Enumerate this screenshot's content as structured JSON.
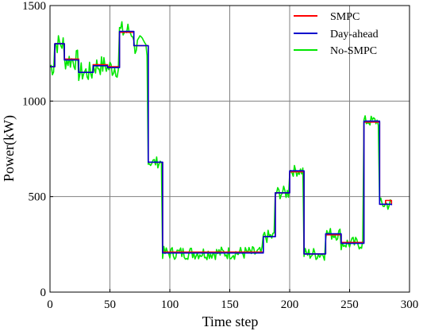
{
  "chart_data": {
    "type": "line",
    "xlabel": "Time step",
    "ylabel": "Power(kW)",
    "xlim": [
      0,
      300
    ],
    "ylim": [
      0,
      1500
    ],
    "xticks": [
      0,
      50,
      100,
      150,
      200,
      250,
      300
    ],
    "yticks": [
      0,
      500,
      1000,
      1500
    ],
    "grid": true,
    "legend_position": "top-right",
    "series": [
      {
        "name": "SMPC",
        "color": "#ff0000",
        "segments": [
          [
            0,
            1180
          ],
          [
            4,
            1300
          ],
          [
            12,
            1220
          ],
          [
            24,
            1150
          ],
          [
            36,
            1190
          ],
          [
            48,
            1180
          ],
          [
            58,
            1360
          ],
          [
            70,
            1290
          ],
          [
            82,
            680
          ],
          [
            94,
            210
          ],
          [
            178,
            290
          ],
          [
            188,
            520
          ],
          [
            200,
            630
          ],
          [
            212,
            200
          ],
          [
            230,
            300
          ],
          [
            243,
            260
          ],
          [
            262,
            890
          ],
          [
            275,
            460
          ],
          [
            280,
            480
          ],
          [
            285,
            460
          ]
        ]
      },
      {
        "name": "Day-ahead",
        "color": "#0000cc",
        "segments": [
          [
            0,
            1180
          ],
          [
            4,
            1300
          ],
          [
            12,
            1215
          ],
          [
            24,
            1150
          ],
          [
            36,
            1185
          ],
          [
            48,
            1175
          ],
          [
            58,
            1365
          ],
          [
            70,
            1290
          ],
          [
            82,
            680
          ],
          [
            94,
            205
          ],
          [
            178,
            290
          ],
          [
            188,
            520
          ],
          [
            200,
            635
          ],
          [
            212,
            200
          ],
          [
            230,
            305
          ],
          [
            243,
            255
          ],
          [
            262,
            895
          ],
          [
            275,
            460
          ],
          [
            285,
            455
          ]
        ]
      },
      {
        "name": "No-SMPC",
        "color": "#00e600",
        "segments": [
          [
            0,
            1180
          ],
          [
            4,
            1300
          ],
          [
            12,
            1215
          ],
          [
            24,
            1150
          ],
          [
            36,
            1185
          ],
          [
            48,
            1175
          ],
          [
            58,
            1365
          ],
          [
            70,
            1290
          ],
          [
            82,
            680
          ],
          [
            94,
            205
          ],
          [
            178,
            290
          ],
          [
            188,
            520
          ],
          [
            200,
            635
          ],
          [
            212,
            200
          ],
          [
            230,
            305
          ],
          [
            243,
            255
          ],
          [
            262,
            895
          ],
          [
            275,
            460
          ],
          [
            285,
            455
          ]
        ]
      }
    ]
  }
}
